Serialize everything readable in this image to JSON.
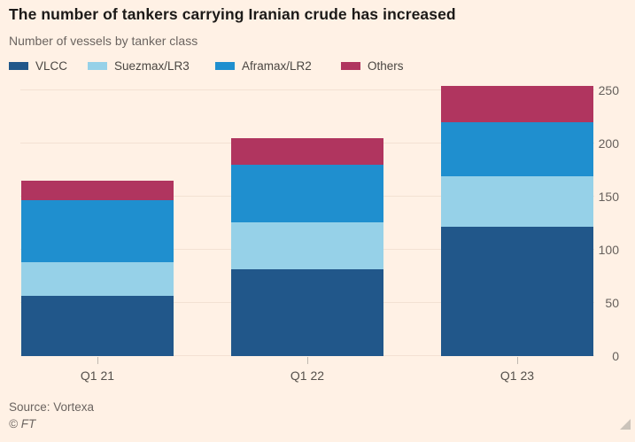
{
  "chart_data": {
    "type": "bar",
    "stacked": true,
    "title": "The number of tankers carrying Iranian crude has increased",
    "subtitle": "Number of vessels by tanker class",
    "categories": [
      "Q1 21",
      "Q1 22",
      "Q1 23"
    ],
    "series": [
      {
        "name": "VLCC",
        "color": "#21578a",
        "values": [
          57,
          82,
          122
        ]
      },
      {
        "name": "Suezmax/LR3",
        "color": "#96d1e8",
        "values": [
          31,
          44,
          47
        ]
      },
      {
        "name": "Aframax/LR2",
        "color": "#1f8fcf",
        "values": [
          59,
          54,
          51
        ]
      },
      {
        "name": "Others",
        "color": "#b0355f",
        "values": [
          18,
          25,
          34
        ]
      }
    ],
    "totals": [
      165,
      205,
      254
    ],
    "xlabel": "",
    "ylabel": "",
    "ylim": [
      0,
      255
    ],
    "yticks": [
      0,
      50,
      100,
      150,
      200,
      250
    ],
    "yaxis_side": "right",
    "grid": true,
    "legend_position": "top",
    "background_color": "#fff1e5",
    "gridline_color": "#f3e1d3"
  },
  "footer": {
    "source": "Source: Vortexa",
    "copyright": "© FT"
  }
}
